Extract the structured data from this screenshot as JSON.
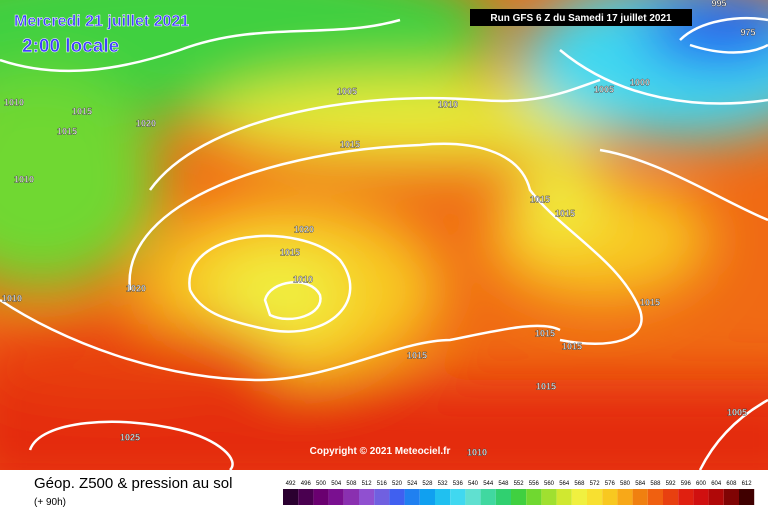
{
  "header": {
    "date": "Mercredi 21 juillet 2021",
    "time": "2:00 locale",
    "run": "Run GFS 6 Z du Samedi 17 juillet 2021"
  },
  "copyright": "Copyright © 2021 Meteociel.fr",
  "isobar_labels": [
    1010,
    1015,
    1015,
    1020,
    1010,
    1005,
    1010,
    1015,
    1020,
    1015,
    1010,
    1020,
    1010,
    1015,
    1015,
    1015,
    1015,
    1015,
    1015,
    1015,
    1025,
    1010,
    1005,
    1005,
    1000,
    995,
    975
  ],
  "footer": {
    "title": "Géop. Z500 & pression au sol",
    "lead": "(+ 90h)"
  },
  "color_scale": {
    "values": [
      492,
      496,
      500,
      504,
      508,
      512,
      516,
      520,
      524,
      528,
      532,
      536,
      540,
      544,
      548,
      552,
      556,
      560,
      564,
      568,
      572,
      576,
      580,
      584,
      588,
      592,
      596,
      600,
      604,
      608,
      612
    ],
    "colors": [
      "#2a0030",
      "#4a0050",
      "#6a0070",
      "#7a1090",
      "#8a30b0",
      "#9050d0",
      "#7060e0",
      "#4060f0",
      "#2080f0",
      "#10a0f0",
      "#20c0f0",
      "#40d8f0",
      "#60e0d0",
      "#40d8a0",
      "#30d070",
      "#40d040",
      "#70d830",
      "#a0e030",
      "#d0e830",
      "#f0f040",
      "#f8e030",
      "#f8c820",
      "#f8a818",
      "#f08010",
      "#f06010",
      "#e84010",
      "#e02010",
      "#d01010",
      "#b00808",
      "#800404",
      "#400000"
    ]
  }
}
